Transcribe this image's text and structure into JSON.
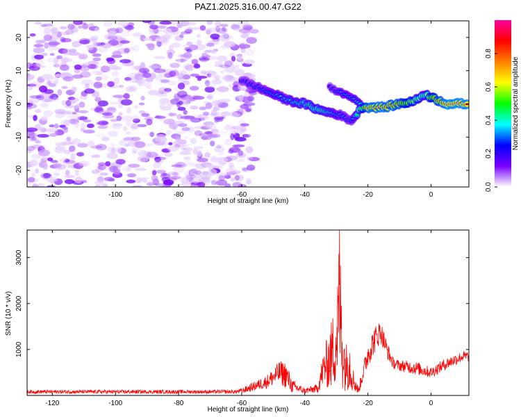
{
  "chart_data": [
    {
      "type": "heatmap",
      "title": "PAZ1.2025.316.00.47.G22",
      "xlabel": "Height of straight line (km)",
      "ylabel": "Frequency (Hz)",
      "xlim": [
        -128,
        12
      ],
      "ylim": [
        -25,
        25
      ],
      "xticks": [
        -120,
        -100,
        -80,
        -60,
        -40,
        -20,
        0
      ],
      "yticks": [
        -20,
        -10,
        0,
        10,
        20
      ],
      "colorbar": {
        "label": "Normalized spectral amplitude",
        "range": [
          0,
          1
        ],
        "ticks": [
          "0.0",
          "0.2",
          "0.4",
          "0.6",
          "0.8"
        ],
        "colormap": [
          "#ffffff",
          "#7a00ff",
          "#0000ff",
          "#00ffff",
          "#00ff00",
          "#ffff00",
          "#ff8000",
          "#ff0000",
          "#ff00a0"
        ]
      },
      "ridge": {
        "x": [
          -60,
          -55,
          -50,
          -45,
          -40,
          -35,
          -30,
          -25,
          -22,
          -20,
          -15,
          -10,
          -5,
          -2,
          0,
          5,
          10,
          12
        ],
        "frequency": [
          7,
          5,
          3,
          1,
          0,
          -2,
          -3,
          -5,
          -1,
          -1,
          -1,
          0,
          1,
          3,
          2,
          0,
          0,
          0
        ],
        "amplitude": [
          0.25,
          0.3,
          0.35,
          0.4,
          0.45,
          0.5,
          0.35,
          0.3,
          0.6,
          0.85,
          0.85,
          0.8,
          0.6,
          0.5,
          0.7,
          0.9,
          0.9,
          0.9
        ]
      },
      "secondary_ridge": {
        "x": [
          -32,
          -30,
          -28,
          -25,
          -22
        ],
        "frequency": [
          5,
          4,
          3,
          2,
          0
        ],
        "amplitude": [
          0.25,
          0.3,
          0.35,
          0.35,
          0.4
        ]
      },
      "noise_extent": [
        -128,
        -58
      ]
    },
    {
      "type": "line",
      "title": "",
      "xlabel": "Height of straight line (km)",
      "ylabel": "SNR (10 * v/v)",
      "xlim": [
        -128,
        12
      ],
      "ylim": [
        0,
        3600
      ],
      "xticks": [
        -120,
        -100,
        -80,
        -60,
        -40,
        -20,
        0
      ],
      "yticks": [
        1000,
        2000,
        3000
      ],
      "color": "#ff0000",
      "envelope": {
        "x": [
          -128,
          -62,
          -60,
          -56,
          -52,
          -48,
          -46,
          -44,
          -40,
          -36,
          -34,
          -32,
          -30,
          -29,
          -28,
          -27,
          -26,
          -25,
          -23,
          -20,
          -18,
          -16,
          -14,
          -12,
          -10,
          -5,
          0,
          5,
          10,
          12
        ],
        "mean": [
          80,
          80,
          100,
          200,
          300,
          500,
          450,
          200,
          100,
          150,
          600,
          800,
          1200,
          2000,
          1000,
          600,
          800,
          400,
          100,
          900,
          1200,
          1400,
          1000,
          700,
          650,
          600,
          500,
          700,
          850,
          850
        ],
        "spread": [
          40,
          40,
          60,
          100,
          150,
          250,
          300,
          150,
          60,
          100,
          400,
          700,
          1000,
          1600,
          900,
          500,
          700,
          300,
          80,
          300,
          300,
          250,
          200,
          120,
          120,
          150,
          120,
          130,
          120,
          120
        ],
        "peak": {
          "x": -29,
          "y": 3600
        }
      }
    }
  ]
}
